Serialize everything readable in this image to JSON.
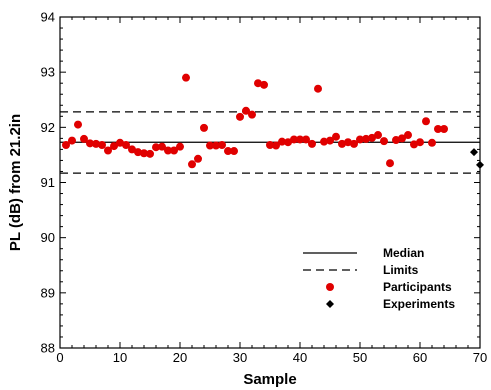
{
  "chart_data": {
    "type": "scatter",
    "xlabel": "Sample",
    "ylabel": "PL (dB) from 21.2in",
    "xlim": [
      0,
      70
    ],
    "ylim": [
      88,
      94
    ],
    "xticks": [
      0,
      10,
      20,
      30,
      40,
      50,
      60,
      70
    ],
    "yticks": [
      88,
      89,
      90,
      91,
      92,
      93,
      94
    ],
    "grid": false,
    "legend_position": "bottom-right",
    "reference_lines": [
      {
        "name": "Median",
        "style": "solid",
        "y": 91.73
      },
      {
        "name": "Limits",
        "style": "dashed",
        "y": 92.28
      },
      {
        "name": "Limits",
        "style": "dashed",
        "y": 91.17
      }
    ],
    "series": [
      {
        "name": "Participants",
        "marker": "circle",
        "color": "#e00000",
        "points": [
          [
            1,
            91.68
          ],
          [
            2,
            91.76
          ],
          [
            3,
            92.05
          ],
          [
            4,
            91.79
          ],
          [
            5,
            91.71
          ],
          [
            6,
            91.7
          ],
          [
            7,
            91.68
          ],
          [
            8,
            91.58
          ],
          [
            9,
            91.66
          ],
          [
            10,
            91.72
          ],
          [
            11,
            91.68
          ],
          [
            12,
            91.6
          ],
          [
            13,
            91.55
          ],
          [
            14,
            91.53
          ],
          [
            15,
            91.52
          ],
          [
            16,
            91.64
          ],
          [
            17,
            91.65
          ],
          [
            18,
            91.58
          ],
          [
            19,
            91.58
          ],
          [
            20,
            91.65
          ],
          [
            21,
            92.9
          ],
          [
            22,
            91.33
          ],
          [
            23,
            91.43
          ],
          [
            24,
            91.99
          ],
          [
            25,
            91.67
          ],
          [
            26,
            91.67
          ],
          [
            27,
            91.68
          ],
          [
            28,
            91.57
          ],
          [
            29,
            91.57
          ],
          [
            30,
            92.19
          ],
          [
            31,
            92.3
          ],
          [
            32,
            92.23
          ],
          [
            33,
            92.8
          ],
          [
            34,
            92.77
          ],
          [
            35,
            91.68
          ],
          [
            36,
            91.67
          ],
          [
            37,
            91.74
          ],
          [
            38,
            91.73
          ],
          [
            39,
            91.78
          ],
          [
            40,
            91.78
          ],
          [
            41,
            91.78
          ],
          [
            42,
            91.7
          ],
          [
            43,
            92.7
          ],
          [
            44,
            91.74
          ],
          [
            45,
            91.76
          ],
          [
            46,
            91.83
          ],
          [
            47,
            91.7
          ],
          [
            48,
            91.73
          ],
          [
            49,
            91.7
          ],
          [
            50,
            91.78
          ],
          [
            51,
            91.79
          ],
          [
            52,
            91.81
          ],
          [
            53,
            91.86
          ],
          [
            54,
            91.75
          ],
          [
            55,
            91.35
          ],
          [
            56,
            91.77
          ],
          [
            57,
            91.8
          ],
          [
            58,
            91.86
          ],
          [
            59,
            91.69
          ],
          [
            60,
            91.73
          ],
          [
            61,
            92.11
          ],
          [
            62,
            91.72
          ],
          [
            63,
            91.97
          ],
          [
            64,
            91.97
          ]
        ]
      },
      {
        "name": "Experiments",
        "marker": "diamond",
        "color": "#000000",
        "points": [
          [
            69,
            91.55
          ],
          [
            70,
            91.32
          ]
        ]
      }
    ]
  }
}
